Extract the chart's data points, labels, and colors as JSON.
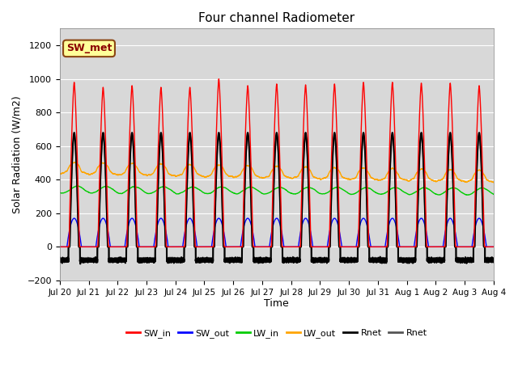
{
  "title": "Four channel Radiometer",
  "xlabel": "Time",
  "ylabel": "Solar Radiation (W/m2)",
  "ylim": [
    -200,
    1300
  ],
  "yticks": [
    -200,
    0,
    200,
    400,
    600,
    800,
    1000,
    1200
  ],
  "annotation_text": "SW_met",
  "annotation_bg": "#ffff99",
  "annotation_border": "#8B4513",
  "plot_bg": "#d8d8d8",
  "SW_in_color": "#ff0000",
  "SW_out_color": "#0000ff",
  "LW_in_color": "#00cc00",
  "LW_out_color": "#ffa500",
  "Rnet_black_color": "#000000",
  "Rnet_dark_color": "#555555",
  "legend_entries": [
    "SW_in",
    "SW_out",
    "LW_in",
    "LW_out",
    "Rnet",
    "Rnet"
  ],
  "legend_colors": [
    "#ff0000",
    "#0000ff",
    "#00cc00",
    "#ffa500",
    "#000000",
    "#555555"
  ],
  "x_tick_labels": [
    "Jul 20",
    "Jul 21",
    "Jul 22",
    "Jul 23",
    "Jul 24",
    "Jul 25",
    "Jul 26",
    "Jul 27",
    "Jul 28",
    "Jul 29",
    "Jul 30",
    "Jul 31",
    "Aug 1",
    "Aug 2",
    "Aug 3",
    "Aug 4"
  ]
}
